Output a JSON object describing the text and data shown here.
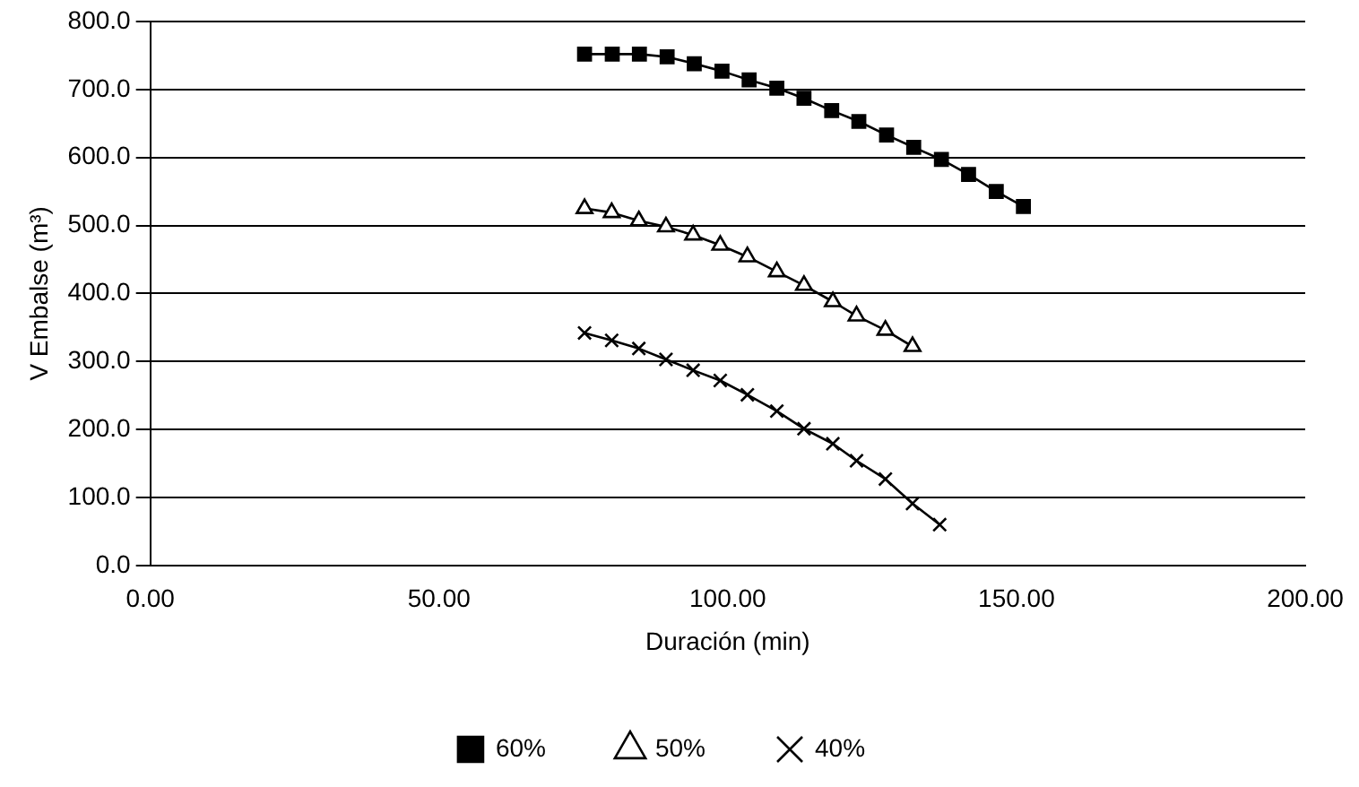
{
  "chart_data": {
    "type": "line",
    "xlabel": "Duración (min)",
    "ylabel": "V Embalse (m³)",
    "xlim": [
      0,
      200
    ],
    "xticks": [
      {
        "value": 0,
        "label": "0.00"
      },
      {
        "value": 50,
        "label": "50.00"
      },
      {
        "value": 100,
        "label": "100.00"
      },
      {
        "value": 150,
        "label": "150.00"
      },
      {
        "value": 200,
        "label": "200.00"
      }
    ],
    "ylim": [
      0,
      800
    ],
    "yticks": [
      {
        "value": 0,
        "label": "0.0"
      },
      {
        "value": 100,
        "label": "100.0"
      },
      {
        "value": 200,
        "label": "200.0"
      },
      {
        "value": 300,
        "label": "300.0"
      },
      {
        "value": 400,
        "label": "400.0"
      },
      {
        "value": 500,
        "label": "500.0"
      },
      {
        "value": 600,
        "label": "600.0"
      },
      {
        "value": 700,
        "label": "700.0"
      },
      {
        "value": 800,
        "label": "800.0"
      }
    ],
    "grid": "y",
    "legend": "bottom",
    "line_style": "solid",
    "series": [
      {
        "name": "60%",
        "color": "#000000",
        "marker": "square",
        "x": [
          75.2,
          80,
          84.7,
          89.5,
          94.2,
          99,
          103.7,
          108.5,
          113.2,
          118,
          122.7,
          127.5,
          132.2,
          137,
          141.7,
          146.5,
          151.2
        ],
        "values": [
          752,
          752,
          752,
          748,
          738,
          727,
          714,
          702,
          687,
          669,
          653,
          633,
          615,
          597,
          575,
          550,
          528
        ]
      },
      {
        "name": "50%",
        "color": "#000000",
        "marker": "triangle",
        "x": [
          75.2,
          79.9,
          84.6,
          89.3,
          94,
          98.7,
          103.4,
          108.5,
          113.2,
          118.2,
          122.3,
          127.3,
          132
        ],
        "values": [
          525,
          519,
          507,
          498,
          486,
          471,
          454,
          432,
          412,
          388,
          367,
          346,
          322
        ]
      },
      {
        "name": "40%",
        "color": "#000000",
        "marker": "cross",
        "x": [
          75.2,
          79.9,
          84.6,
          89.3,
          94,
          98.7,
          103.4,
          108.5,
          113.2,
          118.2,
          122.3,
          127.3,
          132,
          136.7
        ],
        "values": [
          342,
          331,
          319,
          303,
          287,
          272,
          251,
          227,
          201,
          179,
          154,
          127,
          91,
          60
        ]
      }
    ]
  }
}
